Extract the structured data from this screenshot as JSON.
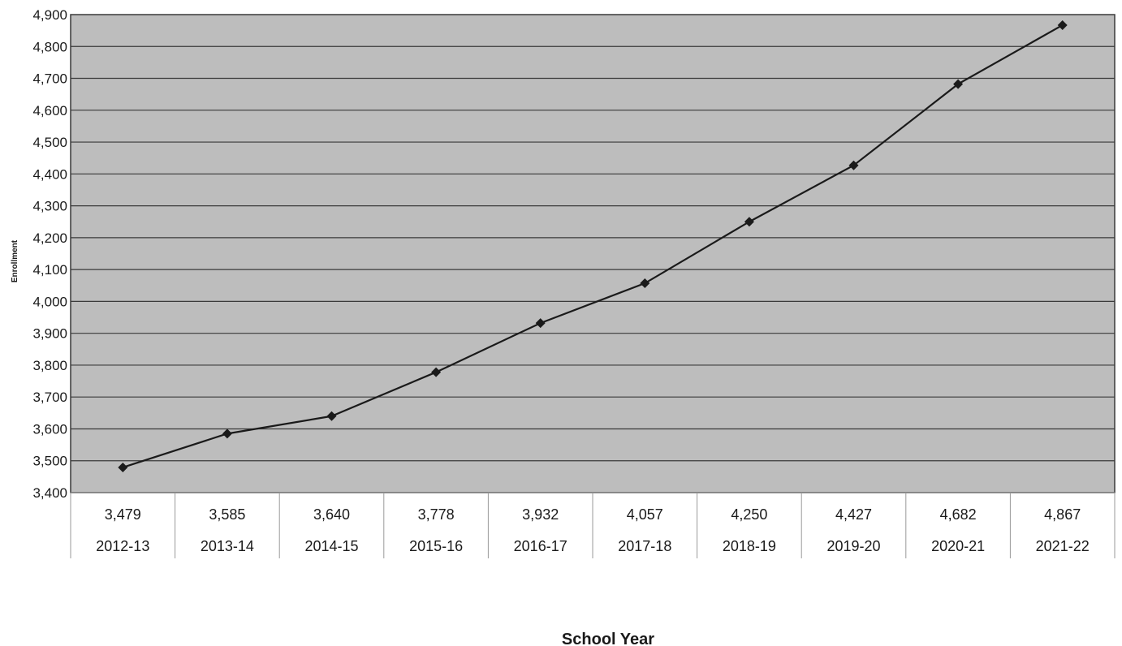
{
  "colors": {
    "plot_background": "#bdbdbd",
    "gridline": "#3a3a3a",
    "line": "#1a1a1a",
    "marker": "#1a1a1a",
    "text": "#1a1a1a"
  },
  "chart_data": {
    "type": "line",
    "xlabel": "School Year",
    "ylabel": "Enrollment",
    "ylim": [
      3400,
      4900
    ],
    "ytick_step": 100,
    "ytick_labels": [
      "3,400",
      "3,500",
      "3,600",
      "3,700",
      "3,800",
      "3,900",
      "4,000",
      "4,100",
      "4,200",
      "4,300",
      "4,400",
      "4,500",
      "4,600",
      "4,700",
      "4,800",
      "4,900"
    ],
    "grid": true,
    "marker": "diamond-icon",
    "categories": [
      "2012-13",
      "2013-14",
      "2014-15",
      "2015-16",
      "2016-17",
      "2017-18",
      "2018-19",
      "2019-20",
      "2020-21",
      "2021-22"
    ],
    "value_labels": [
      "3,479",
      "3,585",
      "3,640",
      "3,778",
      "3,932",
      "4,057",
      "4,250",
      "4,427",
      "4,682",
      "4,867"
    ],
    "series": [
      {
        "values": [
          3479,
          3585,
          3640,
          3778,
          3932,
          4057,
          4250,
          4427,
          4682,
          4867
        ]
      }
    ]
  }
}
